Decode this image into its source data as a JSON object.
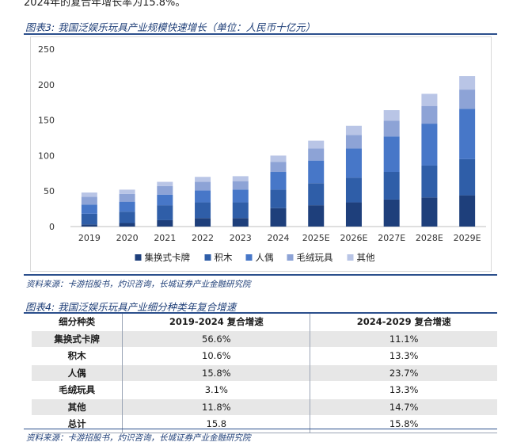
{
  "page": {
    "cut_off_text": "2024年的复合年增长率为15.8%。",
    "figure3_title": "图表3:  我国泛娱乐玩具产业规模快速增长（单位：人民币十亿元）",
    "figure3_source": "资料来源：卡游招股书，灼识咨询，长城证券产业金融研究院",
    "figure4_title": "图表4:  我国泛娱乐玩具产业细分种类年复合增速",
    "figure4_source": "资料来源：卡游招股书，灼识咨询，长城证券产业金融研究院"
  },
  "colors": {
    "accent": "#2b4f8c",
    "title_text": "#1f3f78",
    "series": [
      "#1e3f7b",
      "#2f5ea8",
      "#4777c8",
      "#8da3d6",
      "#b9c5e6"
    ],
    "table_shade": "#e7e7e7"
  },
  "chart_data": {
    "type": "bar",
    "stacked": true,
    "title": "",
    "xlabel": "",
    "ylabel": "",
    "categories": [
      "2019",
      "2020",
      "2021",
      "2022",
      "2023",
      "2024",
      "2025E",
      "2026E",
      "2027E",
      "2028E",
      "2029E"
    ],
    "yticks": [
      0,
      50,
      100,
      150,
      200,
      250
    ],
    "ylim": [
      0,
      250
    ],
    "grid": false,
    "legend_position": "bottom",
    "series": [
      {
        "name": "集换式卡牌",
        "values": [
          3,
          5,
          9,
          12,
          12,
          26,
          30,
          34,
          38,
          41,
          44
        ]
      },
      {
        "name": "积木",
        "values": [
          15,
          16,
          21,
          22,
          22,
          26,
          31,
          35,
          39,
          45,
          51
        ]
      },
      {
        "name": "人偶",
        "values": [
          13,
          14,
          15,
          17,
          18,
          25,
          32,
          41,
          50,
          59,
          71
        ]
      },
      {
        "name": "毛绒玩具",
        "values": [
          11,
          11,
          12,
          12,
          12,
          14,
          17,
          19,
          22,
          25,
          27
        ]
      },
      {
        "name": "其他",
        "values": [
          6,
          6,
          6,
          7,
          7,
          9,
          11,
          13,
          15,
          17,
          19
        ]
      }
    ]
  },
  "table": {
    "headers": [
      "细分种类",
      "2019-2024 复合增速",
      "2024-2029 复合增速"
    ],
    "rows": [
      {
        "category": "集换式卡牌",
        "cagr_2019_2024": "56.6%",
        "cagr_2024_2029": "11.1%"
      },
      {
        "category": "积木",
        "cagr_2019_2024": "10.6%",
        "cagr_2024_2029": "13.3%"
      },
      {
        "category": "人偶",
        "cagr_2019_2024": "15.8%",
        "cagr_2024_2029": "23.7%"
      },
      {
        "category": "毛绒玩具",
        "cagr_2019_2024": "3.1%",
        "cagr_2024_2029": "13.3%"
      },
      {
        "category": "其他",
        "cagr_2019_2024": "11.8%",
        "cagr_2024_2029": "14.7%"
      },
      {
        "category": "总计",
        "cagr_2019_2024": "15.8",
        "cagr_2024_2029": "15.8%"
      }
    ]
  }
}
